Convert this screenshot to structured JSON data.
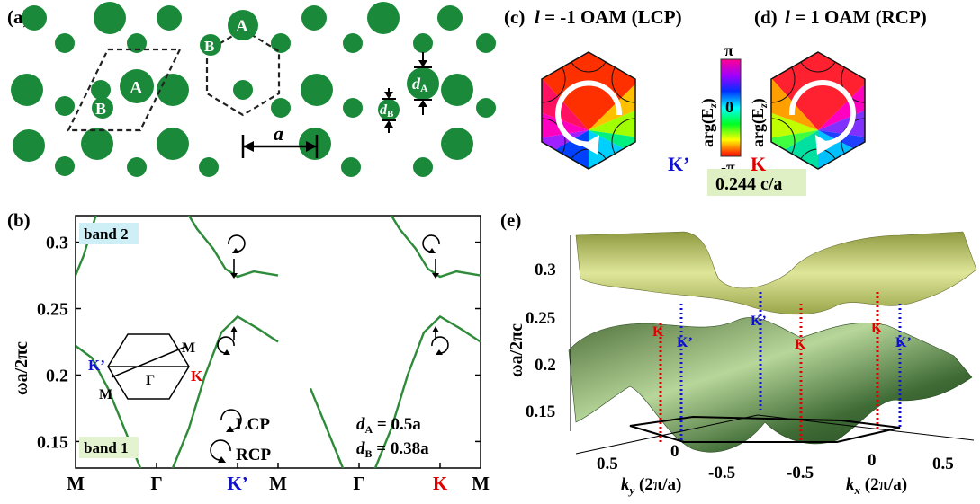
{
  "panels": {
    "a": {
      "label": "(a)",
      "site_A": "A",
      "site_B": "B",
      "lattice_const": "a",
      "dA_main": "d",
      "dA_sub": "A",
      "dB_main": "d",
      "dB_sub": "B"
    },
    "b": {
      "label": "(b)",
      "band2_label": "band 2",
      "band1_label": "band 1",
      "lcp_label": "LCP",
      "rcp_label": "RCP",
      "dA_eq_main": "d",
      "dA_eq_sub": "A",
      "dA_eq_val": " = 0.5a",
      "dB_eq_main": "d",
      "dB_eq_sub": "B",
      "dB_eq_val": " = 0.38a",
      "bz_labels": {
        "K_prime": "K’",
        "K": "K",
        "M_top": "M",
        "M_bot": "M",
        "Gamma": "Γ"
      }
    },
    "c": {
      "label": "(c)",
      "title_l": "l",
      "title_rest": " = -1 OAM (LCP)",
      "corner": "K’"
    },
    "d": {
      "label": "(d)",
      "title_l": "l",
      "title_rest": " = 1 OAM (RCP)",
      "corner": "K"
    },
    "colorbar": {
      "top": "π",
      "mid": "0",
      "bot": "-π",
      "ylabel_left": "arg(E",
      "ylabel_sub": "z",
      "ylabel_close": ")",
      "freq_box": "0.244 c/a"
    },
    "e": {
      "label": "(e)",
      "ylabel": "ωa/2πc",
      "xlabel_ky": "k",
      "xlabel_ky_sub": "y",
      "xlabel_ky_unit": " (2π/a)",
      "xlabel_kx": "k",
      "xlabel_kx_sub": "x",
      "xlabel_kx_unit": " (2π/a)",
      "yticks": [
        "0.3",
        "0.25",
        "0.2",
        "0.15"
      ],
      "ky_ticks": [
        "0.5",
        "0",
        "-0.5"
      ],
      "kx_ticks": [
        "-0.5",
        "0",
        "0.5"
      ],
      "valley_labels": [
        "K",
        "K’",
        "K’",
        "K",
        "K",
        "K’"
      ]
    }
  },
  "colors": {
    "green": "#1a8a3a",
    "band_green": "#2e8b3a",
    "K_red": "#e00000",
    "Kp_blue": "#1010d0",
    "band2_bg": "#cdeff5",
    "band1_bg": "#e4f3cf",
    "freq_bg": "#dff0c4"
  },
  "chart_data": {
    "type": "line",
    "title": "",
    "ylabel": "ωa/2πc",
    "xlabel": "",
    "ylim": [
      0.13,
      0.32
    ],
    "yticks": [
      0.15,
      0.2,
      0.25,
      0.3
    ],
    "xticks": [
      "M",
      "Γ",
      "K’",
      "M",
      "Γ",
      "K",
      "M"
    ],
    "x_tick_positions": [
      0,
      1,
      2,
      2.5,
      3.5,
      4.5,
      5
    ],
    "series": [
      {
        "name": "",
        "x": [
          0,
          0.2,
          0.4,
          0.6,
          0.8,
          1.0,
          1.2,
          1.4,
          1.6,
          1.8,
          2.0,
          2.25,
          2.5
        ],
        "values": [
          0.222,
          0.213,
          0.19,
          0.16,
          0.13,
          0.115,
          0.13,
          0.16,
          0.2,
          0.232,
          0.244,
          0.235,
          0.225
        ]
      },
      {
        "name": "",
        "x": [
          0,
          0.1,
          0.2,
          0.3,
          1.3,
          1.5,
          1.7,
          1.85,
          2.0,
          2.2,
          2.5
        ],
        "values": [
          0.275,
          0.29,
          0.31,
          0.33,
          0.33,
          0.31,
          0.295,
          0.28,
          0.274,
          0.278,
          0.275
        ]
      }
    ],
    "annotations": [
      "band 2",
      "band 1",
      "LCP",
      "RCP",
      "d_A = 0.5a",
      "d_B = 0.38a"
    ]
  }
}
